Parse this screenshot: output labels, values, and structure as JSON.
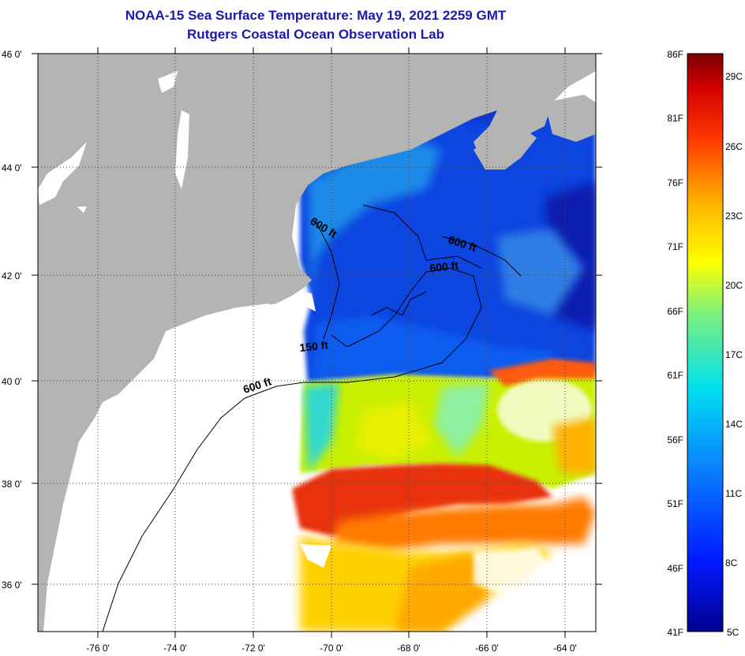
{
  "title": "NOAA-15 Sea Surface Temperature:  May 19, 2021 2259 GMT",
  "subtitle": "Rutgers Coastal Ocean Observation Lab",
  "map": {
    "lat_labels": [
      "46 0'",
      "44 0'",
      "42 0'",
      "40 0'",
      "38 0'",
      "36 0'"
    ],
    "lon_labels": [
      "-76 0'",
      "-74 0'",
      "-72 0'",
      "-70 0'",
      "-68 0'",
      "-66 0'",
      "-64 0'"
    ],
    "contour_labels": [
      "600 ft",
      "600 ft",
      "600 ft",
      "150 ft",
      "600 ft"
    ],
    "colors": {
      "land": "#b4b4b4",
      "no_data": "#ffffff",
      "cold": "#0a3fd8",
      "gulf_stream": "#e8300a"
    }
  },
  "colorbar": {
    "fahrenheit_labels": [
      "86F",
      "81F",
      "76F",
      "71F",
      "66F",
      "61F",
      "56F",
      "51F",
      "46F",
      "41F"
    ],
    "celsius_labels": [
      "29C",
      "26C",
      "23C",
      "20C",
      "17C",
      "14C",
      "11C",
      "8C",
      "5C"
    ],
    "range_celsius": [
      5,
      30
    ]
  }
}
